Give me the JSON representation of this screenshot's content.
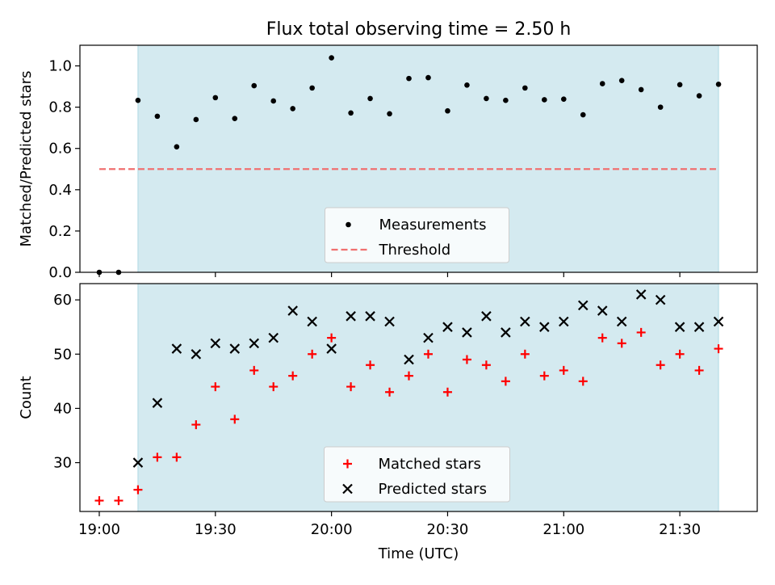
{
  "chart_data": [
    {
      "type": "scatter",
      "title": "Flux total observing time = 2.50 h",
      "ylabel": "Matched/Predicted stars",
      "xlabel": "",
      "x_unit": "time (UTC)",
      "xlim": [
        "18:55",
        "21:50"
      ],
      "ylim": [
        0.0,
        1.1
      ],
      "yticks": [
        0.0,
        0.2,
        0.4,
        0.6,
        0.8,
        1.0
      ],
      "ytick_labels": [
        "0.0",
        "0.2",
        "0.4",
        "0.6",
        "0.8",
        "1.0"
      ],
      "xticks": [
        "19:00",
        "19:30",
        "20:00",
        "20:30",
        "21:00",
        "21:30"
      ],
      "shaded_span": {
        "from": "19:10",
        "to": "21:40",
        "color": "#d4eaf0"
      },
      "legend": {
        "placement": "lower-center"
      },
      "series": [
        {
          "name": "Measurements",
          "marker": "dot",
          "color": "#000000",
          "x": [
            "19:00",
            "19:05",
            "19:10",
            "19:15",
            "19:20",
            "19:25",
            "19:30",
            "19:35",
            "19:40",
            "19:45",
            "19:50",
            "19:55",
            "20:00",
            "20:05",
            "20:10",
            "20:15",
            "20:20",
            "20:25",
            "20:30",
            "20:35",
            "20:40",
            "20:45",
            "20:50",
            "20:55",
            "21:00",
            "21:05",
            "21:10",
            "21:15",
            "21:20",
            "21:25",
            "21:30",
            "21:35",
            "21:40"
          ],
          "values": [
            0.0,
            0.0,
            0.833,
            0.756,
            0.608,
            0.74,
            0.846,
            0.745,
            0.904,
            0.83,
            0.793,
            0.893,
            1.039,
            0.772,
            0.842,
            0.768,
            0.939,
            0.943,
            0.782,
            0.907,
            0.842,
            0.833,
            0.893,
            0.836,
            0.839,
            0.763,
            0.914,
            0.929,
            0.885,
            0.8,
            0.909,
            0.855,
            0.911
          ]
        },
        {
          "name": "Threshold",
          "type": "line",
          "style": "dashed",
          "color": "#f07070",
          "x": [
            "19:00",
            "21:40"
          ],
          "values": [
            0.5,
            0.5
          ]
        }
      ]
    },
    {
      "type": "scatter",
      "title": "",
      "ylabel": "Count",
      "xlabel": "Time (UTC)",
      "xlim": [
        "18:55",
        "21:50"
      ],
      "ylim": [
        21,
        63
      ],
      "yticks": [
        30,
        40,
        50,
        60
      ],
      "ytick_labels": [
        "30",
        "40",
        "50",
        "60"
      ],
      "xticks": [
        "19:00",
        "19:30",
        "20:00",
        "20:30",
        "21:00",
        "21:30"
      ],
      "shaded_span": {
        "from": "19:10",
        "to": "21:40",
        "color": "#d4eaf0"
      },
      "legend": {
        "placement": "lower-center"
      },
      "series": [
        {
          "name": "Matched stars",
          "marker": "plus",
          "color": "#ff0000",
          "x": [
            "19:00",
            "19:05",
            "19:10",
            "19:15",
            "19:20",
            "19:25",
            "19:30",
            "19:35",
            "19:40",
            "19:45",
            "19:50",
            "19:55",
            "20:00",
            "20:05",
            "20:10",
            "20:15",
            "20:20",
            "20:25",
            "20:30",
            "20:35",
            "20:40",
            "20:45",
            "20:50",
            "20:55",
            "21:00",
            "21:05",
            "21:10",
            "21:15",
            "21:20",
            "21:25",
            "21:30",
            "21:35",
            "21:40"
          ],
          "values": [
            23,
            23,
            25,
            31,
            31,
            37,
            44,
            38,
            47,
            44,
            46,
            50,
            53,
            44,
            48,
            43,
            46,
            50,
            43,
            49,
            48,
            45,
            50,
            46,
            47,
            45,
            53,
            52,
            54,
            48,
            50,
            47,
            51
          ]
        },
        {
          "name": "Predicted stars",
          "marker": "x",
          "color": "#000000",
          "x": [
            "19:10",
            "19:15",
            "19:20",
            "19:25",
            "19:30",
            "19:35",
            "19:40",
            "19:45",
            "19:50",
            "19:55",
            "20:00",
            "20:05",
            "20:10",
            "20:15",
            "20:20",
            "20:25",
            "20:30",
            "20:35",
            "20:40",
            "20:45",
            "20:50",
            "20:55",
            "21:00",
            "21:05",
            "21:10",
            "21:15",
            "21:20",
            "21:25",
            "21:30",
            "21:35",
            "21:40"
          ],
          "values": [
            30,
            41,
            51,
            50,
            52,
            51,
            52,
            53,
            58,
            56,
            51,
            57,
            57,
            56,
            49,
            53,
            55,
            54,
            57,
            54,
            56,
            55,
            56,
            59,
            58,
            56,
            61,
            60,
            55,
            55,
            56
          ]
        }
      ]
    }
  ]
}
